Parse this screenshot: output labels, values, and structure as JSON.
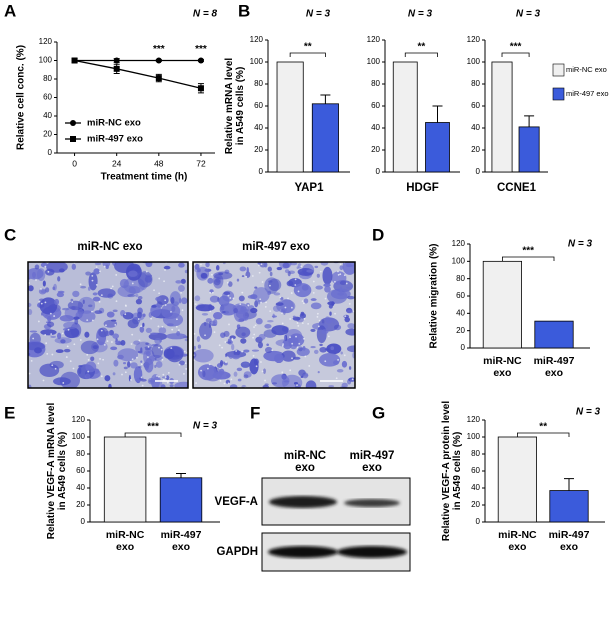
{
  "chart_data": [
    {
      "type": "line",
      "xlabel": "Treatment time (h)",
      "ylabel": "Relative cell conc. (%)",
      "n_label": "N = 8",
      "x": [
        0,
        24,
        48,
        72
      ],
      "xlim": [
        -10,
        80
      ],
      "xticks": [
        0,
        24,
        48,
        72
      ],
      "ylim": [
        0,
        120
      ],
      "yticks": [
        0,
        20,
        40,
        60,
        80,
        100,
        120
      ],
      "series": [
        {
          "name": "miR-NC exo",
          "color": "#000000",
          "marker": "circle",
          "values": [
            100,
            100,
            100,
            100
          ],
          "errors": [
            2,
            2,
            1,
            1
          ]
        },
        {
          "name": "miR-497 exo",
          "color": "#000000",
          "marker": "square",
          "values": [
            100,
            91,
            81,
            70
          ],
          "errors": [
            2,
            5,
            4,
            5
          ]
        }
      ],
      "significance": [
        null,
        null,
        "***",
        "***"
      ],
      "legend": "lower left"
    },
    {
      "type": "bar",
      "xlabel": "YAP1",
      "ylabel": [
        "Relative  mRNA level",
        "in A549 cells (%)"
      ],
      "n_label": "N = 3",
      "values": [
        100,
        62
      ],
      "errors": [
        null,
        8
      ],
      "colors": [
        "#f0f0f0",
        "#3b5bdb"
      ],
      "legend_labels": [
        "miR-NC exo",
        "miR-497 exo"
      ],
      "ylim": [
        0,
        120
      ],
      "yticks": [
        0,
        20,
        40,
        60,
        80,
        100,
        120
      ],
      "significance": "**"
    },
    {
      "type": "bar",
      "xlabel": "HDGF",
      "n_label": "N = 3",
      "values": [
        100,
        45
      ],
      "errors": [
        null,
        15
      ],
      "colors": [
        "#f0f0f0",
        "#3b5bdb"
      ],
      "ylim": [
        0,
        120
      ],
      "yticks": [
        0,
        20,
        40,
        60,
        80,
        100,
        120
      ],
      "significance": "**"
    },
    {
      "type": "bar",
      "xlabel": "CCNE1",
      "n_label": "N = 3",
      "values": [
        100,
        41
      ],
      "errors": [
        null,
        10
      ],
      "colors": [
        "#f0f0f0",
        "#3b5bdb"
      ],
      "ylim": [
        0,
        120
      ],
      "yticks": [
        0,
        20,
        40,
        60,
        80,
        100,
        120
      ],
      "significance": "***"
    },
    {
      "type": "bar",
      "ylabel": "Relative migration (%)",
      "n_label": "N = 3",
      "categories": [
        [
          "miR-NC",
          "exo"
        ],
        [
          "miR-497",
          "exo"
        ]
      ],
      "values": [
        100,
        31
      ],
      "errors": [
        null,
        null
      ],
      "colors": [
        "#f0f0f0",
        "#3b5bdb"
      ],
      "ylim": [
        0,
        120
      ],
      "yticks": [
        0,
        20,
        40,
        60,
        80,
        100,
        120
      ],
      "significance": "***"
    },
    {
      "type": "bar",
      "ylabel": [
        "Relative VEGF-A mRNA level",
        "in A549 cells (%)"
      ],
      "n_label": "N = 3",
      "categories": [
        [
          "miR-NC",
          "exo"
        ],
        [
          "miR-497",
          "exo"
        ]
      ],
      "values": [
        100,
        52
      ],
      "errors": [
        null,
        5
      ],
      "colors": [
        "#f0f0f0",
        "#3b5bdb"
      ],
      "ylim": [
        0,
        120
      ],
      "yticks": [
        0,
        20,
        40,
        60,
        80,
        100,
        120
      ],
      "significance": "***"
    },
    {
      "type": "bar",
      "ylabel": [
        "Relative VEGF-A protein level",
        "in A549 cells (%)"
      ],
      "n_label": "N = 3",
      "categories": [
        [
          "miR-NC",
          "exo"
        ],
        [
          "miR-497",
          "exo"
        ]
      ],
      "values": [
        100,
        37
      ],
      "errors": [
        null,
        14
      ],
      "colors": [
        "#f0f0f0",
        "#3b5bdb"
      ],
      "ylim": [
        0,
        120
      ],
      "yticks": [
        0,
        20,
        40,
        60,
        80,
        100,
        120
      ],
      "significance": "**"
    }
  ],
  "panels": {
    "letters": [
      "A",
      "B",
      "C",
      "D",
      "E",
      "F",
      "G"
    ],
    "C": {
      "images": [
        "miR-NC exo",
        "miR-497 exo"
      ]
    },
    "F": {
      "columns": [
        [
          "miR-NC",
          "exo"
        ],
        [
          "miR-497",
          "exo"
        ]
      ],
      "rows": [
        "VEGF-A",
        "GAPDH"
      ]
    }
  }
}
